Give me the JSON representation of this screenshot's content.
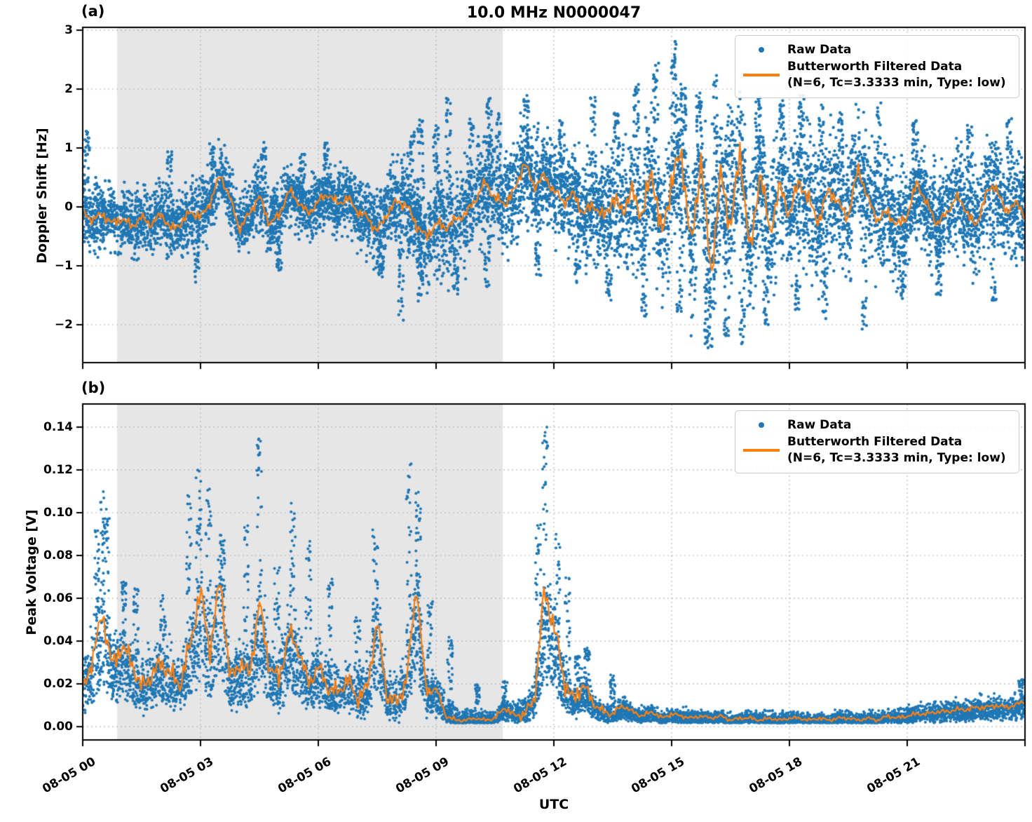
{
  "title": "10.0 MHz N0000047",
  "xlabel": "UTC",
  "legend": {
    "raw": "Raw Data",
    "filtered_line1": "Butterworth Filtered Data",
    "filtered_line2": "(N=6, Tc=3.3333 min, Type: low)"
  },
  "colors": {
    "raw": "#1f77b4",
    "filtered": "#ff7f0e",
    "shade": "#e6e6e6",
    "grid": "#b8b8b8",
    "spine": "#000000"
  },
  "x_axis": {
    "tick_hours": [
      0,
      3,
      6,
      9,
      12,
      15,
      18,
      21
    ],
    "tick_labels": [
      "08-05 00",
      "08-05 03",
      "08-05 06",
      "08-05 09",
      "08-05 12",
      "08-05 15",
      "08-05 18",
      "08-05 21"
    ],
    "xlim_hours": [
      0,
      24
    ]
  },
  "shaded_region_hours": [
    0.875,
    10.7
  ],
  "panels": {
    "a": {
      "label": "(a)",
      "ylabel": "Doppler Shift [Hz]",
      "ytick_values": [
        3,
        2,
        1,
        0,
        -1,
        -2
      ],
      "ytick_labels": [
        "3",
        "2",
        "1",
        "0",
        "−1",
        "−2"
      ]
    },
    "b": {
      "label": "(b)",
      "ylabel": "Peak Voltage [V]",
      "ytick_values": [
        0.14,
        0.12,
        0.1,
        0.08,
        0.06,
        0.04,
        0.02,
        0.0
      ],
      "ytick_labels": [
        "0.14",
        "0.12",
        "0.10",
        "0.08",
        "0.06",
        "0.04",
        "0.02",
        "0.00"
      ]
    }
  },
  "chart_data": [
    {
      "panel": "a",
      "type": "scatter",
      "title": "10.0 MHz N0000047",
      "xlabel": "UTC",
      "ylabel": "Doppler Shift [Hz]",
      "xlim": [
        0,
        24
      ],
      "ylim": [
        -2.643,
        3.048
      ],
      "grid": true,
      "legend_position": "upper right",
      "series_names": [
        "Raw Data",
        "Butterworth Filtered Data (N=6, Tc=3.3333 min, Type: low)"
      ],
      "x_start": 0,
      "x_step_hours": 0.25,
      "filtered": [
        -0.1,
        -0.22,
        -0.12,
        -0.28,
        -0.2,
        -0.33,
        -0.18,
        -0.3,
        -0.12,
        -0.38,
        -0.28,
        -0.08,
        -0.18,
        0.08,
        0.55,
        0.15,
        -0.38,
        -0.1,
        0.18,
        -0.28,
        -0.15,
        0.28,
        0.08,
        -0.12,
        0.1,
        0.22,
        0.05,
        0.15,
        -0.08,
        -0.18,
        -0.42,
        -0.12,
        0.1,
        0.02,
        -0.3,
        -0.52,
        -0.28,
        -0.35,
        -0.22,
        -0.12,
        0.12,
        0.42,
        0.15,
        0.05,
        0.28,
        0.75,
        0.35,
        0.52,
        0.28,
        0.08,
        0.22,
        -0.12,
        0.05,
        -0.18,
        0.12,
        -0.05,
        0.25,
        -0.15,
        0.62,
        -0.52,
        0.45,
        0.92,
        -0.72,
        0.85,
        -1.18,
        0.55,
        -0.35,
        0.95,
        -0.85,
        0.65,
        -0.45,
        0.35,
        -0.12,
        0.45,
        0.1,
        -0.25,
        0.32,
        0.05,
        -0.18,
        0.68,
        0.12,
        -0.22,
        -0.08,
        -0.32,
        -0.15,
        0.42,
        0.05,
        -0.28,
        -0.12,
        0.18,
        -0.05,
        -0.35,
        0.22,
        0.38,
        -0.1,
        0.08,
        -0.15
      ],
      "raw_band_halfwidth_hourly": [
        0.55,
        0.5,
        0.5,
        0.55,
        0.5,
        0.5,
        0.5,
        0.55,
        0.7,
        0.85,
        0.85,
        0.8,
        0.75,
        0.85,
        1.05,
        1.15,
        1.15,
        1.1,
        1.05,
        1.0,
        0.95,
        0.85,
        0.8,
        0.8,
        0.85
      ],
      "line_highfreq_amp_hourly": [
        0.1,
        0.1,
        0.1,
        0.1,
        0.1,
        0.1,
        0.1,
        0.1,
        0.12,
        0.12,
        0.1,
        0.12,
        0.12,
        0.12,
        0.25,
        0.3,
        0.3,
        0.28,
        0.2,
        0.15,
        0.12,
        0.12,
        0.1,
        0.1,
        0.1
      ],
      "raw_extreme_plumes": [
        {
          "t": 0.1,
          "v": 1.3
        },
        {
          "t": 2.2,
          "v": 0.95
        },
        {
          "t": 3.3,
          "v": 1.1
        },
        {
          "t": 4.6,
          "v": 1.15
        },
        {
          "t": 5.6,
          "v": 0.95
        },
        {
          "t": 6.2,
          "v": 1.1
        },
        {
          "t": 8.4,
          "v": 1.3
        },
        {
          "t": 8.6,
          "v": 1.5
        },
        {
          "t": 9.0,
          "v": 1.4
        },
        {
          "t": 9.3,
          "v": 1.85
        },
        {
          "t": 9.9,
          "v": 1.5
        },
        {
          "t": 10.35,
          "v": 1.85
        },
        {
          "t": 10.6,
          "v": 1.6
        },
        {
          "t": 11.3,
          "v": 1.9
        },
        {
          "t": 12.2,
          "v": 1.5
        },
        {
          "t": 13.0,
          "v": 1.9
        },
        {
          "t": 13.6,
          "v": 1.6
        },
        {
          "t": 14.1,
          "v": 2.1
        },
        {
          "t": 14.6,
          "v": 2.45
        },
        {
          "t": 15.05,
          "v": 2.85
        },
        {
          "t": 15.3,
          "v": 2.2
        },
        {
          "t": 15.7,
          "v": 1.9
        },
        {
          "t": 16.1,
          "v": 2.25
        },
        {
          "t": 16.5,
          "v": 1.8
        },
        {
          "t": 17.2,
          "v": 1.9
        },
        {
          "t": 17.8,
          "v": 1.85
        },
        {
          "t": 18.3,
          "v": 1.9
        },
        {
          "t": 18.8,
          "v": 1.75
        },
        {
          "t": 19.3,
          "v": 1.6
        },
        {
          "t": 20.3,
          "v": 1.85
        },
        {
          "t": 21.2,
          "v": 1.5
        },
        {
          "t": 22.6,
          "v": 1.4
        },
        {
          "t": 23.6,
          "v": 1.5
        },
        {
          "t": 2.9,
          "v": -1.3
        },
        {
          "t": 5.0,
          "v": -1.1
        },
        {
          "t": 7.6,
          "v": -1.2
        },
        {
          "t": 8.1,
          "v": -1.95
        },
        {
          "t": 8.6,
          "v": -1.6
        },
        {
          "t": 9.5,
          "v": -1.5
        },
        {
          "t": 10.3,
          "v": -1.4
        },
        {
          "t": 11.6,
          "v": -1.2
        },
        {
          "t": 12.6,
          "v": -1.3
        },
        {
          "t": 13.4,
          "v": -1.6
        },
        {
          "t": 14.3,
          "v": -1.9
        },
        {
          "t": 15.2,
          "v": -2.1
        },
        {
          "t": 15.9,
          "v": -2.45
        },
        {
          "t": 16.4,
          "v": -2.2
        },
        {
          "t": 16.8,
          "v": -2.35
        },
        {
          "t": 17.4,
          "v": -2.0
        },
        {
          "t": 18.2,
          "v": -1.8
        },
        {
          "t": 18.9,
          "v": -1.9
        },
        {
          "t": 19.9,
          "v": -2.1
        },
        {
          "t": 20.9,
          "v": -1.6
        },
        {
          "t": 21.8,
          "v": -1.5
        },
        {
          "t": 23.2,
          "v": -1.6
        }
      ]
    },
    {
      "panel": "b",
      "type": "scatter",
      "xlabel": "UTC",
      "ylabel": "Peak Voltage [V]",
      "xlim": [
        0,
        24
      ],
      "ylim": [
        -0.0062,
        0.1508
      ],
      "grid": true,
      "legend_position": "upper right",
      "series_names": [
        "Raw Data",
        "Butterworth Filtered Data (N=6, Tc=3.3333 min, Type: low)"
      ],
      "x_start": 0,
      "x_step_hours": 0.25,
      "filtered": [
        0.016,
        0.032,
        0.053,
        0.028,
        0.038,
        0.03,
        0.018,
        0.024,
        0.03,
        0.024,
        0.02,
        0.04,
        0.063,
        0.035,
        0.07,
        0.022,
        0.03,
        0.024,
        0.058,
        0.028,
        0.022,
        0.044,
        0.036,
        0.02,
        0.028,
        0.018,
        0.016,
        0.022,
        0.013,
        0.018,
        0.05,
        0.014,
        0.011,
        0.022,
        0.066,
        0.016,
        0.018,
        0.005,
        0.003,
        0.003,
        0.004,
        0.003,
        0.004,
        0.009,
        0.005,
        0.006,
        0.012,
        0.063,
        0.048,
        0.022,
        0.012,
        0.02,
        0.011,
        0.007,
        0.006,
        0.01,
        0.007,
        0.005,
        0.007,
        0.004,
        0.006,
        0.005,
        0.004,
        0.005,
        0.004,
        0.005,
        0.003,
        0.004,
        0.004,
        0.003,
        0.004,
        0.003,
        0.004,
        0.004,
        0.003,
        0.004,
        0.003,
        0.004,
        0.004,
        0.003,
        0.004,
        0.003,
        0.005,
        0.004,
        0.005,
        0.006,
        0.006,
        0.007,
        0.007,
        0.008,
        0.008,
        0.009,
        0.009,
        0.01,
        0.009,
        0.01,
        0.012
      ],
      "raw_band_halfwidth_hourly": [
        0.011,
        0.012,
        0.011,
        0.013,
        0.012,
        0.012,
        0.011,
        0.011,
        0.012,
        0.008,
        0.003,
        0.005,
        0.009,
        0.004,
        0.003,
        0.003,
        0.0028,
        0.0028,
        0.0028,
        0.0028,
        0.003,
        0.0035,
        0.004,
        0.0045,
        0.005
      ],
      "line_highfreq_amp_hourly": [
        0.006,
        0.006,
        0.006,
        0.007,
        0.006,
        0.006,
        0.005,
        0.005,
        0.006,
        0.002,
        0.0008,
        0.002,
        0.008,
        0.003,
        0.0015,
        0.0012,
        0.001,
        0.001,
        0.001,
        0.001,
        0.001,
        0.0012,
        0.0015,
        0.0015,
        0.0015
      ],
      "raw_extreme_plumes": [
        {
          "t": 0.35,
          "v": 0.095
        },
        {
          "t": 0.5,
          "v": 0.11
        },
        {
          "t": 0.62,
          "v": 0.102
        },
        {
          "t": 1.05,
          "v": 0.07
        },
        {
          "t": 1.35,
          "v": 0.065
        },
        {
          "t": 2.05,
          "v": 0.062
        },
        {
          "t": 2.7,
          "v": 0.11
        },
        {
          "t": 2.95,
          "v": 0.125
        },
        {
          "t": 3.2,
          "v": 0.112
        },
        {
          "t": 3.55,
          "v": 0.09
        },
        {
          "t": 4.15,
          "v": 0.098
        },
        {
          "t": 4.5,
          "v": 0.1375
        },
        {
          "t": 4.95,
          "v": 0.075
        },
        {
          "t": 5.35,
          "v": 0.105
        },
        {
          "t": 5.75,
          "v": 0.088
        },
        {
          "t": 6.3,
          "v": 0.073
        },
        {
          "t": 7.0,
          "v": 0.052
        },
        {
          "t": 7.45,
          "v": 0.092
        },
        {
          "t": 8.3,
          "v": 0.125
        },
        {
          "t": 8.55,
          "v": 0.112
        },
        {
          "t": 8.85,
          "v": 0.06
        },
        {
          "t": 9.35,
          "v": 0.042
        },
        {
          "t": 10.05,
          "v": 0.02
        },
        {
          "t": 10.75,
          "v": 0.022
        },
        {
          "t": 11.6,
          "v": 0.095
        },
        {
          "t": 11.78,
          "v": 0.143
        },
        {
          "t": 12.1,
          "v": 0.09
        },
        {
          "t": 12.35,
          "v": 0.07
        },
        {
          "t": 12.6,
          "v": 0.034
        },
        {
          "t": 12.85,
          "v": 0.037
        },
        {
          "t": 13.5,
          "v": 0.025
        },
        {
          "t": 23.9,
          "v": 0.022
        }
      ]
    }
  ]
}
